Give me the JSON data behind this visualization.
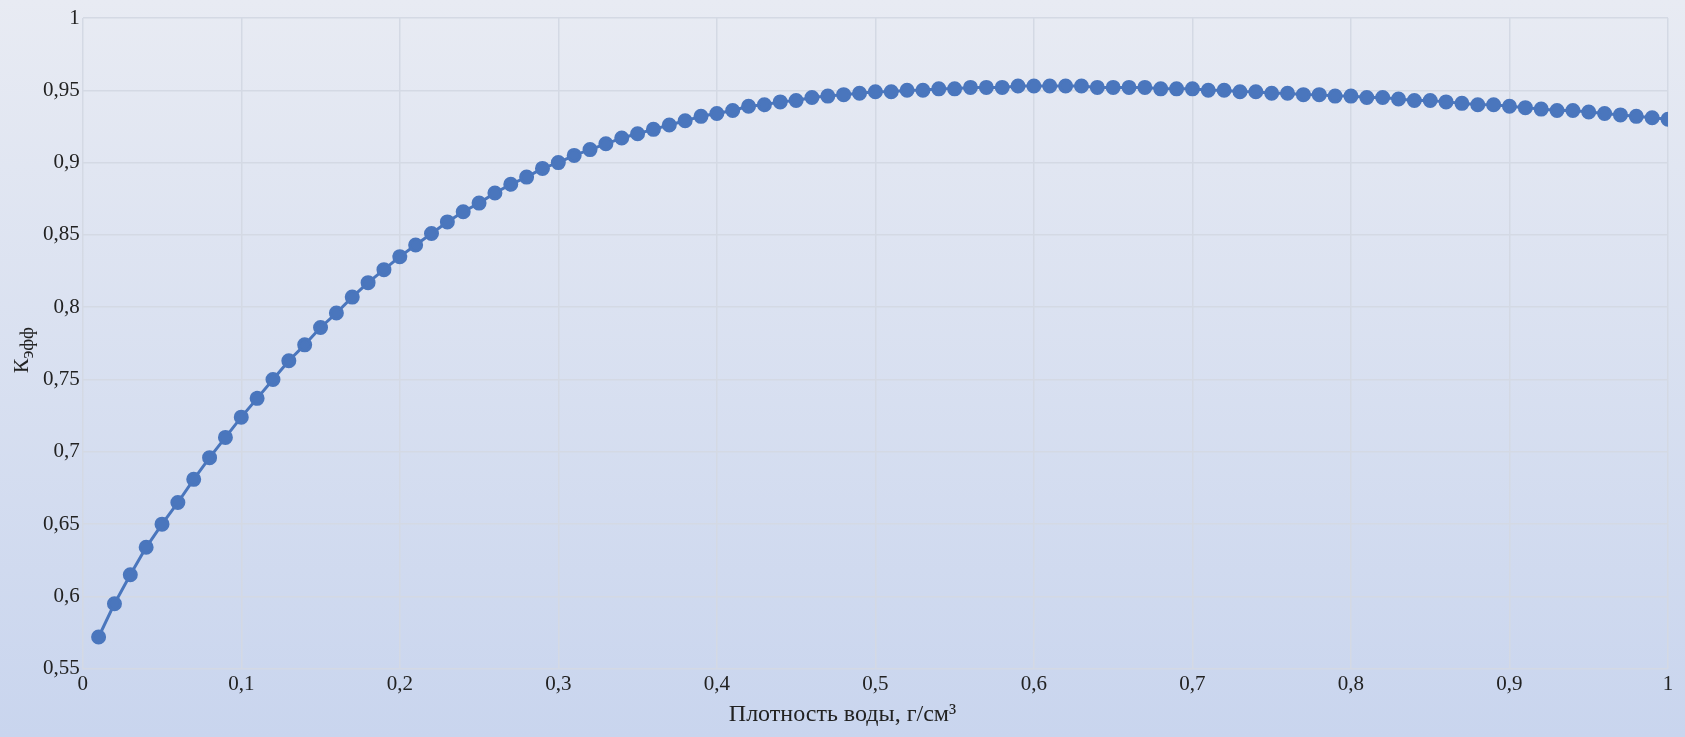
{
  "chart_data": {
    "type": "line",
    "xlabel": "Плотность воды, г/см³",
    "ylabel": "К$_{эфф}$",
    "x": [
      0.01,
      0.02,
      0.03,
      0.04,
      0.05,
      0.06,
      0.07,
      0.08,
      0.09,
      0.1,
      0.11,
      0.12,
      0.13,
      0.14,
      0.15,
      0.16,
      0.17,
      0.18,
      0.19,
      0.2,
      0.21,
      0.22,
      0.23,
      0.24,
      0.25,
      0.26,
      0.27,
      0.28,
      0.29,
      0.3,
      0.31,
      0.32,
      0.33,
      0.34,
      0.35,
      0.36,
      0.37,
      0.38,
      0.39,
      0.4,
      0.41,
      0.42,
      0.43,
      0.44,
      0.45,
      0.46,
      0.47,
      0.48,
      0.49,
      0.5,
      0.51,
      0.52,
      0.53,
      0.54,
      0.55,
      0.56,
      0.57,
      0.58,
      0.59,
      0.6,
      0.61,
      0.62,
      0.63,
      0.64,
      0.65,
      0.66,
      0.67,
      0.68,
      0.69,
      0.7,
      0.71,
      0.72,
      0.73,
      0.74,
      0.75,
      0.76,
      0.77,
      0.78,
      0.79,
      0.8,
      0.81,
      0.82,
      0.83,
      0.84,
      0.85,
      0.86,
      0.87,
      0.88,
      0.89,
      0.9,
      0.91,
      0.92,
      0.93,
      0.94,
      0.95,
      0.96,
      0.97,
      0.98,
      0.99,
      1
    ],
    "series": [
      {
        "color": "#4a76bd",
        "values": [
          0.572,
          0.595,
          0.615,
          0.634,
          0.65,
          0.665,
          0.681,
          0.696,
          0.71,
          0.724,
          0.737,
          0.75,
          0.763,
          0.774,
          0.786,
          0.796,
          0.807,
          0.817,
          0.826,
          0.835,
          0.843,
          0.851,
          0.859,
          0.866,
          0.872,
          0.879,
          0.885,
          0.89,
          0.896,
          0.9,
          0.905,
          0.909,
          0.913,
          0.917,
          0.92,
          0.923,
          0.926,
          0.929,
          0.932,
          0.934,
          0.936,
          0.939,
          0.94,
          0.942,
          0.943,
          0.945,
          0.946,
          0.947,
          0.948,
          0.949,
          0.949,
          0.95,
          0.95,
          0.951,
          0.951,
          0.952,
          0.952,
          0.952,
          0.953,
          0.953,
          0.953,
          0.953,
          0.953,
          0.952,
          0.952,
          0.952,
          0.952,
          0.951,
          0.951,
          0.951,
          0.95,
          0.95,
          0.949,
          0.949,
          0.948,
          0.948,
          0.947,
          0.947,
          0.946,
          0.946,
          0.945,
          0.945,
          0.944,
          0.943,
          0.943,
          0.942,
          0.941,
          0.94,
          0.94,
          0.939,
          0.938,
          0.937,
          0.936,
          0.936,
          0.935,
          0.934,
          0.933,
          0.932,
          0.931,
          0.93
        ]
      }
    ],
    "xlim": [
      0,
      1
    ],
    "ylim": [
      0.55,
      1
    ],
    "xticks": [
      0,
      {
        "value": 0.1,
        "label": "0,1"
      },
      {
        "value": 0.2,
        "label": "0,2"
      },
      {
        "value": 0.3,
        "label": "0,3"
      },
      {
        "value": 0.4,
        "label": "0,4"
      },
      {
        "value": 0.5,
        "label": "0,5"
      },
      {
        "value": 0.6,
        "label": "0,6"
      },
      {
        "value": 0.7,
        "label": "0,7"
      },
      {
        "value": 0.8,
        "label": "0,8"
      },
      {
        "value": 0.9,
        "label": "0,9"
      },
      1
    ],
    "yticks": [
      {
        "value": 0.55,
        "label": "0,55"
      },
      {
        "value": 0.6,
        "label": "0,6"
      },
      {
        "value": 0.65,
        "label": "0,65"
      },
      {
        "value": 0.7,
        "label": "0,7"
      },
      {
        "value": 0.75,
        "label": "0,75"
      },
      {
        "value": 0.8,
        "label": "0,8"
      },
      {
        "value": 0.85,
        "label": "0,85"
      },
      {
        "value": 0.9,
        "label": "0,9"
      },
      {
        "value": 0.95,
        "label": "0,95"
      },
      1
    ],
    "grid": true,
    "marker": "circle",
    "line_style": "solid"
  }
}
